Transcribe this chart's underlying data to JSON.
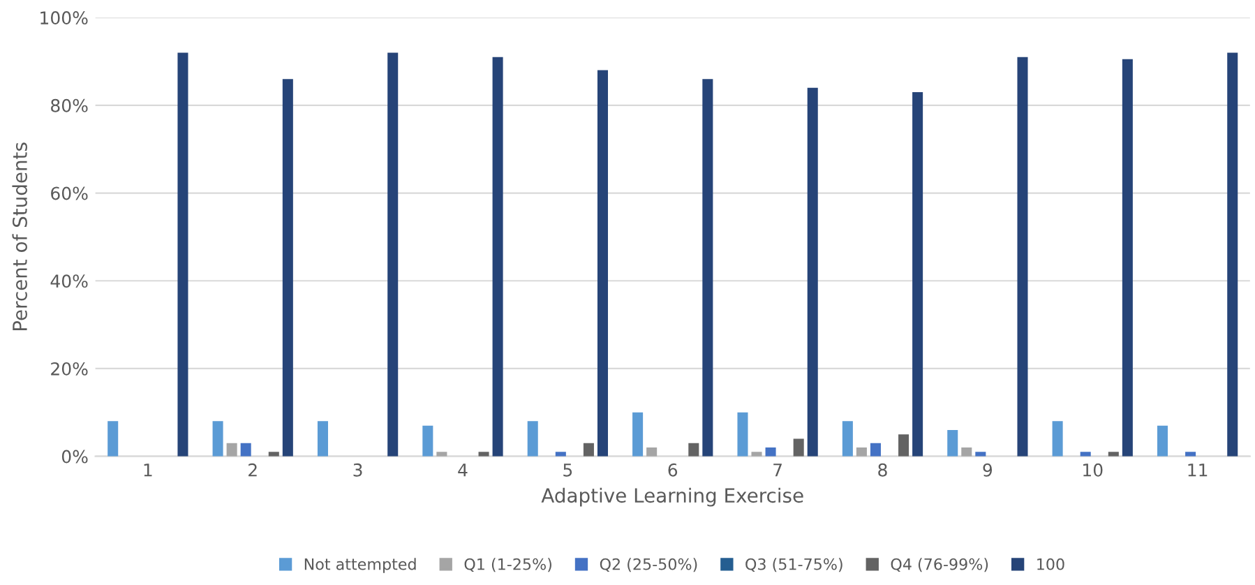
{
  "chart_data": {
    "type": "bar",
    "xlabel": "Adaptive Learning Exercise",
    "ylabel": "Percent of Students",
    "categories": [
      "1",
      "2",
      "3",
      "4",
      "5",
      "6",
      "7",
      "8",
      "9",
      "10",
      "11"
    ],
    "series": [
      {
        "name": "Not attempted",
        "color": "#5b9bd5",
        "values": [
          8,
          8,
          8,
          7,
          8,
          10,
          10,
          8,
          6,
          8,
          7
        ]
      },
      {
        "name": "Q1 (1-25%)",
        "color": "#a5a5a5",
        "values": [
          0,
          3,
          0,
          1,
          0,
          2,
          1,
          2,
          2,
          0,
          0
        ]
      },
      {
        "name": "Q2 (25-50%)",
        "color": "#4472c4",
        "values": [
          0,
          3,
          0,
          0,
          1,
          0,
          2,
          3,
          1,
          1,
          1
        ]
      },
      {
        "name": "Q3 (51-75%)",
        "color": "#255e91",
        "values": [
          0,
          0,
          0,
          0,
          0,
          0,
          0,
          0,
          0,
          0,
          0
        ]
      },
      {
        "name": "Q4 (76-99%)",
        "color": "#636363",
        "values": [
          0,
          1,
          0,
          1,
          3,
          3,
          4,
          5,
          0,
          1,
          0
        ]
      },
      {
        "name": "100",
        "color": "#264478",
        "values": [
          92,
          86,
          92,
          91,
          88,
          86,
          84,
          83,
          91,
          90.5,
          92
        ]
      }
    ],
    "ylim": [
      0,
      100
    ],
    "yticks": [
      {
        "value": 0,
        "label": "0%"
      },
      {
        "value": 20,
        "label": "20%"
      },
      {
        "value": 40,
        "label": "40%"
      },
      {
        "value": 60,
        "label": "60%"
      },
      {
        "value": 80,
        "label": "80%"
      },
      {
        "value": 100,
        "label": "100%"
      }
    ],
    "grid": "y",
    "legend": "bottom"
  }
}
